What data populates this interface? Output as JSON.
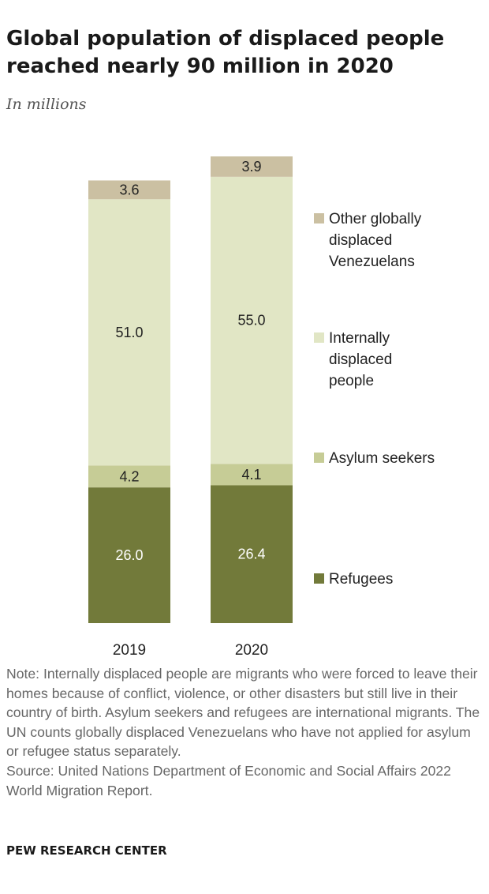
{
  "title": "Global population of displaced people reached nearly 90 million in 2020",
  "subtitle": "In millions",
  "note": "Note: Internally displaced people are migrants who were forced to leave their homes because of conflict, violence, or other disasters but still live in their country of birth. Asylum seekers and refugees are international migrants. The UN counts globally displaced Venezuelans who have not applied for asylum or refugee status separately.",
  "source": "Source: United Nations Department of Economic and Social Affairs 2022 World Migration Report.",
  "brand": "PEW RESEARCH CENTER",
  "chart_data": {
    "type": "bar",
    "stacked": true,
    "categories": [
      "2019",
      "2020"
    ],
    "series": [
      {
        "name": "Refugees",
        "values": [
          26.0,
          26.4
        ],
        "labels": [
          "26.0",
          "26.4"
        ],
        "color": "#727a3a",
        "label_color": "#ffffff"
      },
      {
        "name": "Asylum seekers",
        "values": [
          4.2,
          4.1
        ],
        "labels": [
          "4.2",
          "4.1"
        ],
        "color": "#c6cc96",
        "label_color": "#222222"
      },
      {
        "name": "Internally displaced people",
        "values": [
          51.0,
          55.0
        ],
        "labels": [
          "51.0",
          "55.0"
        ],
        "color": "#e1e6c5",
        "label_color": "#222222"
      },
      {
        "name": "Other globally displaced Venezuelans",
        "values": [
          3.6,
          3.9
        ],
        "labels": [
          "3.6",
          "3.9"
        ],
        "color": "#cbc0a2",
        "label_color": "#222222"
      }
    ],
    "legend": [
      {
        "lines": [
          "Other globally",
          "displaced",
          "Venezuelans"
        ]
      },
      {
        "lines": [
          "Internally",
          "displaced",
          "people"
        ]
      },
      {
        "lines": [
          "Asylum seekers"
        ]
      },
      {
        "lines": [
          "Refugees"
        ]
      }
    ],
    "legend_position": "right",
    "grid": false
  }
}
